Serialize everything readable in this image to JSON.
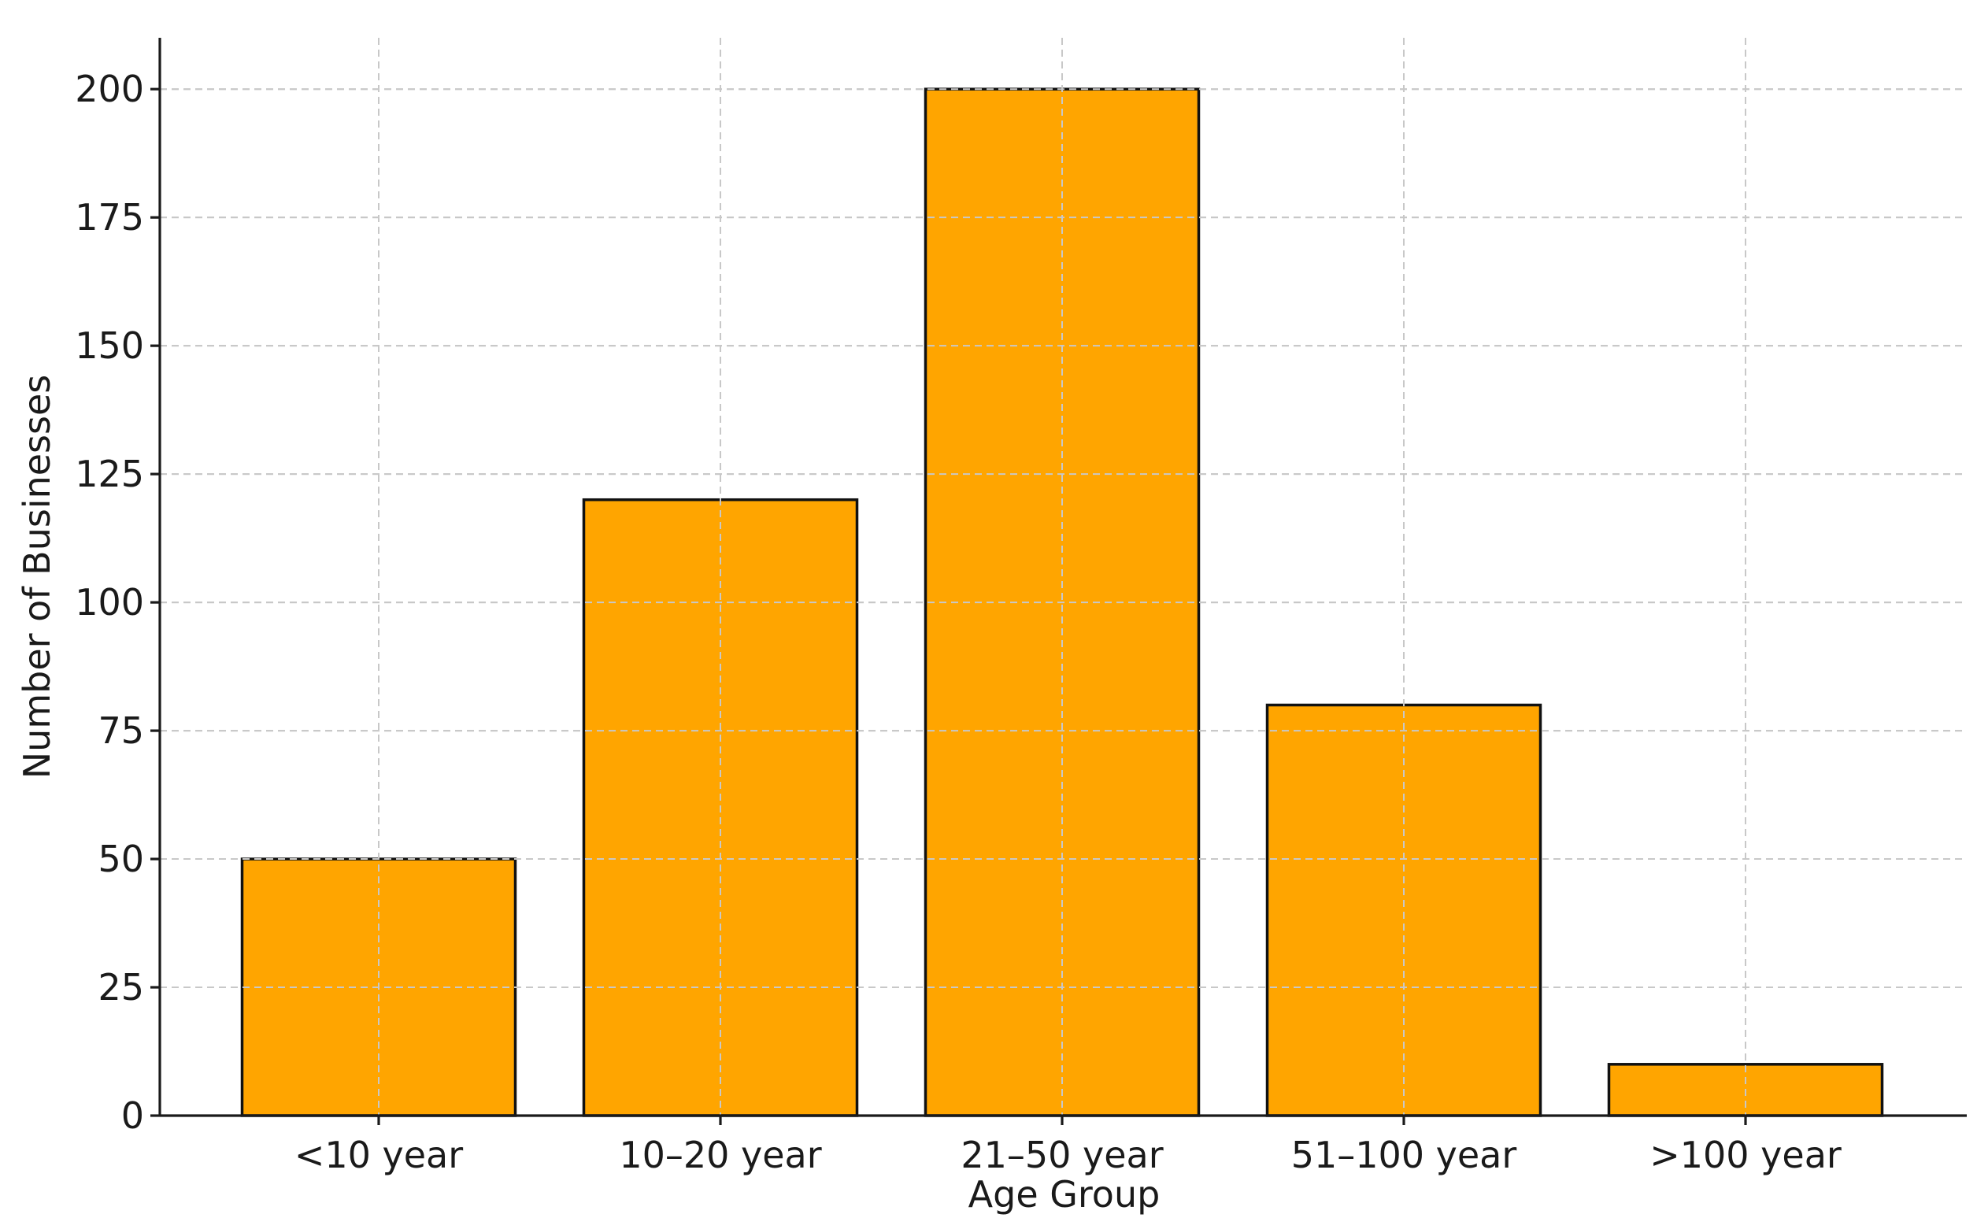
{
  "chart_data": {
    "type": "bar",
    "title": "",
    "xlabel": "Age Group",
    "ylabel": "Number of Businesses",
    "categories": [
      "<10 year",
      "10–20 year",
      "21–50 year",
      "51–100 year",
      ">100 year"
    ],
    "values": [
      50,
      120,
      200,
      80,
      10
    ],
    "ylim": [
      0,
      210
    ],
    "yticks": [
      0,
      25,
      50,
      75,
      100,
      125,
      150,
      175,
      200
    ],
    "ytick_labels": [
      "0",
      "25",
      "50",
      "75",
      "100",
      "125",
      "150",
      "175",
      "200"
    ],
    "grid": true,
    "legend": "none",
    "bar_color": "#FFA500",
    "edge_color": "#111111"
  }
}
